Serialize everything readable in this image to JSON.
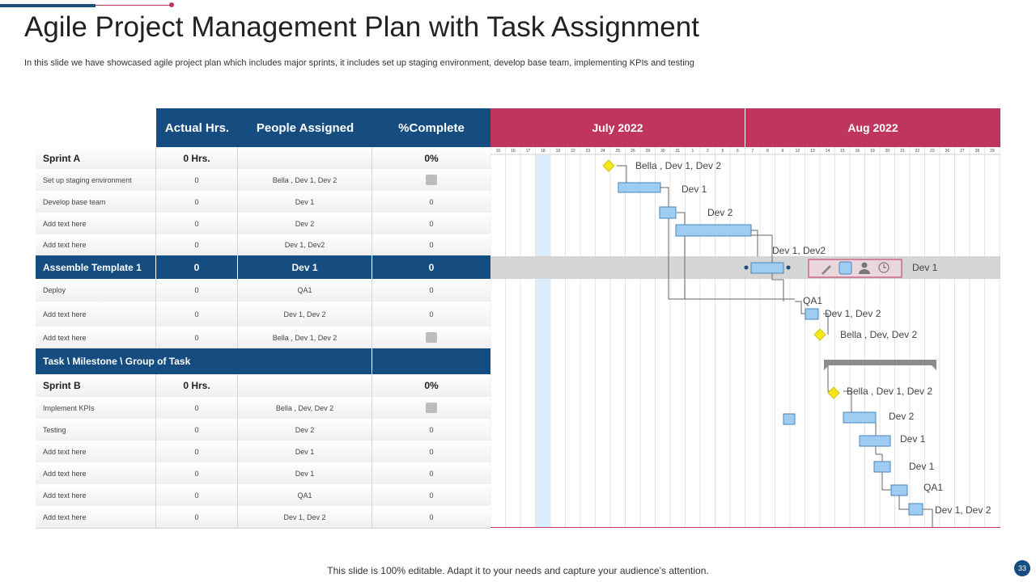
{
  "title": "Agile Project Management Plan with Task Assignment",
  "subtitle": "In this slide we have showcased agile project plan which includes major sprints, it includes set up staging environment, develop base team, implementing KPIs and testing",
  "columns": [
    "Actual Hrs.",
    "People Assigned",
    "%Complete"
  ],
  "months": [
    "July 2022",
    "Aug 2022"
  ],
  "day_ticks": [
    "15",
    "16",
    "17",
    "18",
    "19",
    "22",
    "23",
    "24",
    "25",
    "26",
    "29",
    "30",
    "31",
    "1",
    "2",
    "5",
    "6",
    "7",
    "8",
    "9",
    "12",
    "13",
    "14",
    "15",
    "16",
    "19",
    "20",
    "21",
    "22",
    "23",
    "26",
    "27",
    "28",
    "29"
  ],
  "rows": [
    {
      "type": "sprint",
      "name": "Sprint A",
      "hrs": "0 Hrs.",
      "people": "",
      "complete": "0%"
    },
    {
      "type": "task",
      "name": "Set up staging environment",
      "hrs": "0",
      "people": "Bella , Dev 1, Dev 2",
      "complete": "",
      "milestone": true
    },
    {
      "type": "task",
      "name": "Develop base team",
      "hrs": "0",
      "people": "Dev 1",
      "complete": "0"
    },
    {
      "type": "task",
      "name": "Add text here",
      "hrs": "0",
      "people": "Dev 2",
      "complete": "0"
    },
    {
      "type": "task",
      "name": "Add text here",
      "hrs": "0",
      "people": "Dev 1, Dev2",
      "complete": "0"
    },
    {
      "type": "group",
      "name": "Assemble Template 1",
      "hrs": "0",
      "people": "Dev 1",
      "complete": "0"
    },
    {
      "type": "task",
      "name": "Deploy",
      "hrs": "0",
      "people": "QA1",
      "complete": "0"
    },
    {
      "type": "task",
      "name": "Add text here",
      "hrs": "0",
      "people": "Dev 1, Dev 2",
      "complete": "0"
    },
    {
      "type": "task",
      "name": "Add text here",
      "hrs": "0",
      "people": "Bella , Dev 1, Dev 2",
      "complete": "",
      "milestone": true
    },
    {
      "type": "groupheader",
      "name": "Task \\ Milestone \\ Group of Task",
      "hrs": "",
      "people": "",
      "complete": ""
    },
    {
      "type": "sprint",
      "name": "Sprint B",
      "hrs": "0 Hrs.",
      "people": "",
      "complete": "0%"
    },
    {
      "type": "task",
      "name": "Implement KPIs",
      "hrs": "0",
      "people": "Bella , Dev, Dev 2",
      "complete": "",
      "milestone": true
    },
    {
      "type": "task",
      "name": "Testing",
      "hrs": "0",
      "people": "Dev 2",
      "complete": "0"
    },
    {
      "type": "task",
      "name": "Add text here",
      "hrs": "0",
      "people": "Dev 1",
      "complete": "0"
    },
    {
      "type": "task",
      "name": "Add text here",
      "hrs": "0",
      "people": "Dev 1",
      "complete": "0"
    },
    {
      "type": "task",
      "name": "Add text here",
      "hrs": "0",
      "people": "QA1",
      "complete": "0"
    },
    {
      "type": "task",
      "name": "Add text here",
      "hrs": "0",
      "people": "Dev 1, Dev 2",
      "complete": "0"
    }
  ],
  "gantt_labels": [
    "Bella , Dev 1, Dev 2",
    "Dev 1",
    "Dev 2",
    "Dev 1, Dev2",
    "Dev 1",
    "QA1",
    "Dev 1, Dev 2",
    "Bella , Dev, Dev 2",
    "Bella , Dev 1, Dev 2",
    "Dev 2",
    "Dev 1",
    "Dev 1",
    "QA1",
    "Dev 1, Dev 2"
  ],
  "toolbar_icons": [
    "pencil-icon",
    "square-icon",
    "person-icon",
    "clock-icon"
  ],
  "footer": "This slide is 100% editable. Adapt it to your needs and capture your audience’s attention.",
  "page_number": "33",
  "colors": {
    "navy": "#154d80",
    "crimson": "#c0355e",
    "bar": "#9fcdf2",
    "milestone": "#f5e61a"
  }
}
